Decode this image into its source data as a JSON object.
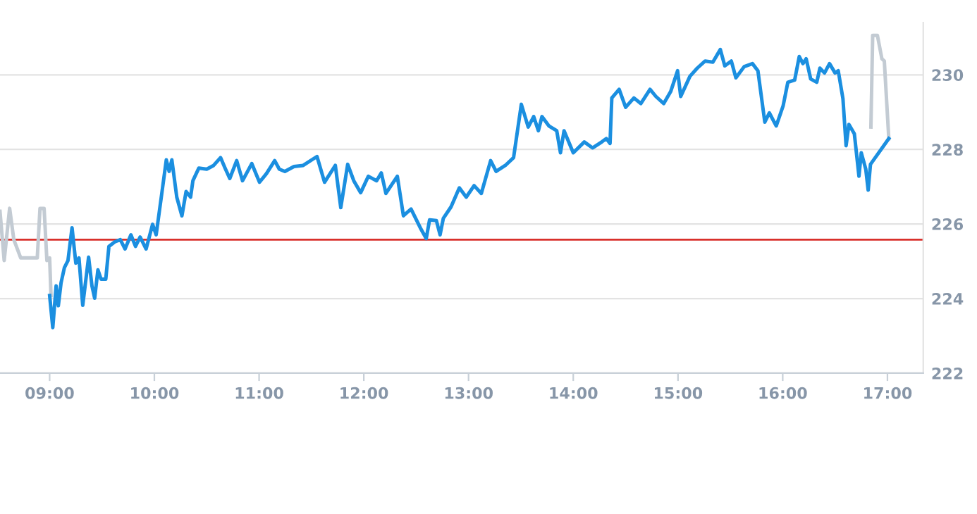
{
  "chart_data": {
    "type": "line",
    "xlim": [
      8.526,
      17.342
    ],
    "ylim": [
      222,
      231.4
    ],
    "xticks": [
      {
        "value": 9,
        "label": "09:00"
      },
      {
        "value": 10,
        "label": "10:00"
      },
      {
        "value": 11,
        "label": "11:00"
      },
      {
        "value": 12,
        "label": "12:00"
      },
      {
        "value": 13,
        "label": "13:00"
      },
      {
        "value": 14,
        "label": "14:00"
      },
      {
        "value": 15,
        "label": "15:00"
      },
      {
        "value": 16,
        "label": "16:00"
      },
      {
        "value": 17,
        "label": "17:00"
      }
    ],
    "yticks": [
      222,
      224,
      226,
      228,
      230
    ],
    "grid": "y",
    "marker": "none",
    "line_style": "solid",
    "ref_lines": [
      {
        "axis": "y",
        "value": 225.58,
        "color": "#d9302b"
      }
    ],
    "series": [
      {
        "color": "#c3cbd3",
        "x": [
          8.526,
          8.566,
          8.618,
          8.658,
          8.724,
          8.882,
          8.908,
          8.947,
          8.974,
          9.0,
          9.013
        ],
        "values": [
          226.34,
          225.02,
          226.42,
          225.58,
          225.09,
          225.09,
          226.42,
          226.42,
          225.02,
          225.09,
          224.08
        ]
      },
      {
        "color": "#c3cbd3",
        "x": [
          16.842,
          16.859,
          16.904,
          16.947,
          16.97,
          17.013
        ],
        "values": [
          228.6,
          231.06,
          231.06,
          230.43,
          230.37,
          228.29
        ]
      },
      {
        "color": "#1b8fe0",
        "x": [
          9.0,
          9.03,
          9.062,
          9.083,
          9.109,
          9.141,
          9.175,
          9.214,
          9.25,
          9.28,
          9.316,
          9.372,
          9.404,
          9.43,
          9.461,
          9.491,
          9.536,
          9.566,
          9.622,
          9.675,
          9.72,
          9.776,
          9.82,
          9.864,
          9.921,
          9.983,
          10.017,
          10.07,
          10.114,
          10.141,
          10.167,
          10.214,
          10.263,
          10.303,
          10.346,
          10.368,
          10.425,
          10.5,
          10.566,
          10.632,
          10.675,
          10.72,
          10.786,
          10.842,
          10.93,
          11.004,
          11.07,
          11.149,
          11.193,
          11.246,
          11.333,
          11.421,
          11.553,
          11.625,
          11.728,
          11.78,
          11.846,
          11.904,
          11.97,
          12.043,
          12.122,
          12.167,
          12.211,
          12.32,
          12.378,
          12.451,
          12.539,
          12.596,
          12.628,
          12.693,
          12.728,
          12.759,
          12.833,
          12.912,
          12.978,
          13.053,
          13.122,
          13.211,
          13.263,
          13.351,
          13.43,
          13.504,
          13.57,
          13.622,
          13.667,
          13.701,
          13.767,
          13.842,
          13.878,
          13.912,
          14.0,
          14.105,
          14.184,
          14.272,
          14.316,
          14.351,
          14.368,
          14.438,
          14.5,
          14.579,
          14.645,
          14.733,
          14.789,
          14.864,
          14.93,
          14.996,
          15.026,
          15.114,
          15.184,
          15.259,
          15.333,
          15.404,
          15.447,
          15.509,
          15.553,
          15.632,
          15.711,
          15.763,
          15.829,
          15.872,
          15.938,
          16.004,
          16.049,
          16.114,
          16.158,
          16.193,
          16.224,
          16.267,
          16.325,
          16.355,
          16.399,
          16.447,
          16.5,
          16.53,
          16.575,
          16.605,
          16.632,
          16.684,
          16.728,
          16.75,
          16.793,
          16.816,
          16.838,
          17.013
        ],
        "values": [
          224.08,
          223.22,
          224.34,
          223.81,
          224.42,
          224.83,
          225.02,
          225.9,
          224.95,
          225.09,
          223.82,
          225.11,
          224.34,
          224.01,
          224.77,
          224.52,
          224.52,
          225.4,
          225.52,
          225.58,
          225.33,
          225.71,
          225.4,
          225.65,
          225.33,
          225.99,
          225.71,
          226.8,
          227.72,
          227.41,
          227.72,
          226.72,
          226.22,
          226.87,
          226.72,
          227.16,
          227.5,
          227.47,
          227.57,
          227.78,
          227.5,
          227.22,
          227.7,
          227.16,
          227.62,
          227.12,
          227.35,
          227.7,
          227.47,
          227.41,
          227.54,
          227.57,
          227.81,
          227.12,
          227.57,
          226.44,
          227.6,
          227.16,
          226.84,
          227.28,
          227.16,
          227.37,
          226.82,
          227.28,
          226.22,
          226.4,
          225.9,
          225.61,
          226.11,
          226.09,
          225.71,
          226.15,
          226.46,
          226.97,
          226.72,
          227.03,
          226.82,
          227.7,
          227.41,
          227.57,
          227.78,
          229.21,
          228.6,
          228.88,
          228.5,
          228.88,
          228.63,
          228.5,
          227.91,
          228.5,
          227.91,
          228.2,
          228.04,
          228.2,
          228.29,
          228.16,
          229.38,
          229.61,
          229.13,
          229.38,
          229.23,
          229.61,
          229.42,
          229.23,
          229.55,
          230.11,
          229.42,
          229.96,
          230.18,
          230.37,
          230.34,
          230.68,
          230.24,
          230.37,
          229.92,
          230.22,
          230.3,
          230.11,
          228.73,
          228.98,
          228.63,
          229.17,
          229.8,
          229.86,
          230.49,
          230.3,
          230.43,
          229.89,
          229.8,
          230.18,
          230.05,
          230.3,
          230.05,
          230.11,
          229.36,
          228.1,
          228.67,
          228.42,
          227.28,
          227.91,
          227.47,
          226.91,
          227.6,
          228.29
        ]
      }
    ]
  }
}
